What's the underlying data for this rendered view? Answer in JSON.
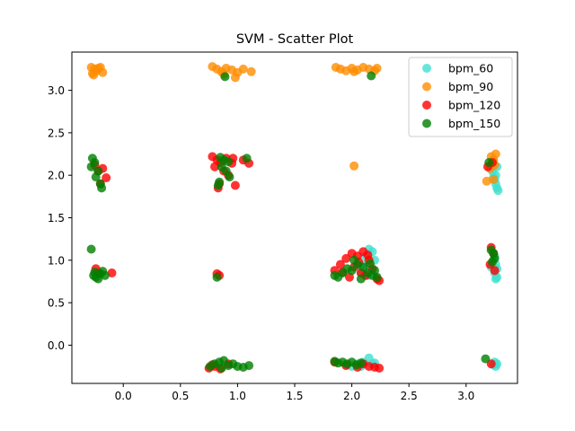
{
  "chart_data": {
    "type": "scatter",
    "title": "SVM - Scatter Plot",
    "xlabel": "",
    "ylabel": "",
    "xlim": [
      -0.45,
      3.45
    ],
    "ylim": [
      -0.45,
      3.45
    ],
    "x_ticks": [
      "0.0",
      "0.5",
      "1.0",
      "1.5",
      "2.0",
      "2.5",
      "3.0"
    ],
    "x_tick_values": [
      0.0,
      0.5,
      1.0,
      1.5,
      2.0,
      2.5,
      3.0
    ],
    "y_ticks": [
      "0.0",
      "0.5",
      "1.0",
      "1.5",
      "2.0",
      "2.5",
      "3.0"
    ],
    "y_tick_values": [
      0.0,
      0.5,
      1.0,
      1.5,
      2.0,
      2.5,
      3.0
    ],
    "grid": false,
    "legend_position": "top-right",
    "series": [
      {
        "name": "bpm_60",
        "color": "#40e0d0",
        "points": [
          [
            2.15,
            1.13
          ],
          [
            2.18,
            1.1
          ],
          [
            2.12,
            1.05
          ],
          [
            2.2,
            1.0
          ],
          [
            2.1,
            0.95
          ],
          [
            2.16,
            0.9
          ],
          [
            2.08,
            0.86
          ],
          [
            2.14,
            0.82
          ],
          [
            3.24,
            2.18
          ],
          [
            3.27,
            2.1
          ],
          [
            3.23,
            2.05
          ],
          [
            3.26,
            2.0
          ],
          [
            3.25,
            1.95
          ],
          [
            3.26,
            1.9
          ],
          [
            3.27,
            1.85
          ],
          [
            3.28,
            1.82
          ],
          [
            3.22,
            2.12
          ],
          [
            3.24,
            1.98
          ],
          [
            3.25,
            1.05
          ],
          [
            3.24,
            1.0
          ],
          [
            3.26,
            0.95
          ],
          [
            3.27,
            0.9
          ],
          [
            3.25,
            0.85
          ],
          [
            3.27,
            0.8
          ],
          [
            3.26,
            0.78
          ],
          [
            3.22,
            0.92
          ],
          [
            3.25,
            -0.2
          ],
          [
            3.27,
            -0.22
          ],
          [
            3.26,
            -0.25
          ],
          [
            3.24,
            -0.23
          ],
          [
            2.05,
            -0.22
          ],
          [
            2.1,
            -0.2
          ],
          [
            2.15,
            -0.15
          ],
          [
            2.0,
            -0.25
          ],
          [
            2.18,
            -0.22
          ],
          [
            1.95,
            -0.23
          ],
          [
            2.08,
            -0.25
          ],
          [
            2.2,
            -0.21
          ]
        ]
      },
      {
        "name": "bpm_90",
        "color": "#ff8c00",
        "points": [
          [
            -0.28,
            3.27
          ],
          [
            -0.25,
            3.25
          ],
          [
            -0.23,
            3.23
          ],
          [
            -0.2,
            3.27
          ],
          [
            -0.27,
            3.2
          ],
          [
            -0.26,
            3.18
          ],
          [
            -0.18,
            3.21
          ],
          [
            -0.22,
            3.26
          ],
          [
            0.78,
            3.28
          ],
          [
            0.82,
            3.25
          ],
          [
            0.86,
            3.22
          ],
          [
            0.9,
            3.26
          ],
          [
            0.95,
            3.24
          ],
          [
            1.0,
            3.21
          ],
          [
            1.05,
            3.25
          ],
          [
            1.12,
            3.22
          ],
          [
            0.98,
            3.15
          ],
          [
            0.88,
            3.19
          ],
          [
            1.86,
            3.27
          ],
          [
            1.9,
            3.25
          ],
          [
            1.95,
            3.23
          ],
          [
            2.0,
            3.26
          ],
          [
            2.05,
            3.24
          ],
          [
            2.1,
            3.27
          ],
          [
            2.15,
            3.25
          ],
          [
            2.2,
            3.23
          ],
          [
            2.22,
            3.26
          ],
          [
            2.02,
            3.22
          ],
          [
            2.02,
            2.11
          ],
          [
            3.22,
            2.22
          ],
          [
            3.24,
            2.18
          ],
          [
            3.26,
            2.25
          ],
          [
            3.25,
            2.12
          ],
          [
            3.18,
            1.93
          ],
          [
            3.24,
            1.95
          ],
          [
            3.21,
            2.08
          ]
        ]
      },
      {
        "name": "bpm_120",
        "color": "#ff0000",
        "points": [
          [
            -0.22,
            2.05
          ],
          [
            -0.18,
            2.08
          ],
          [
            -0.15,
            1.97
          ],
          [
            -0.2,
            1.9
          ],
          [
            -0.25,
            2.12
          ],
          [
            -0.24,
            0.9
          ],
          [
            -0.22,
            0.85
          ],
          [
            -0.1,
            0.85
          ],
          [
            0.78,
            2.22
          ],
          [
            0.82,
            2.18
          ],
          [
            0.85,
            2.15
          ],
          [
            0.9,
            2.2
          ],
          [
            0.95,
            2.14
          ],
          [
            0.8,
            2.1
          ],
          [
            0.88,
            2.05
          ],
          [
            0.92,
            2.0
          ],
          [
            0.84,
            1.9
          ],
          [
            0.83,
            1.85
          ],
          [
            0.98,
            1.88
          ],
          [
            1.05,
            2.18
          ],
          [
            1.1,
            2.14
          ],
          [
            0.96,
            2.2
          ],
          [
            0.84,
            0.82
          ],
          [
            0.82,
            0.84
          ],
          [
            1.85,
            0.88
          ],
          [
            1.9,
            0.95
          ],
          [
            1.95,
            1.02
          ],
          [
            2.0,
            1.08
          ],
          [
            2.05,
            1.05
          ],
          [
            2.1,
            1.1
          ],
          [
            2.15,
            1.0
          ],
          [
            2.02,
            0.92
          ],
          [
            2.08,
            0.85
          ],
          [
            2.18,
            0.9
          ],
          [
            2.12,
            0.82
          ],
          [
            2.22,
            0.78
          ],
          [
            1.98,
            0.8
          ],
          [
            2.06,
            0.98
          ],
          [
            2.14,
            1.06
          ],
          [
            2.24,
            0.76
          ],
          [
            1.92,
            0.86
          ],
          [
            3.22,
            1.15
          ],
          [
            3.24,
            1.08
          ],
          [
            3.21,
            0.95
          ],
          [
            3.25,
            0.88
          ],
          [
            3.23,
            2.15
          ],
          [
            3.19,
            2.1
          ],
          [
            3.22,
            -0.22
          ],
          [
            0.75,
            -0.27
          ],
          [
            0.8,
            -0.25
          ],
          [
            0.85,
            -0.28
          ],
          [
            0.92,
            -0.22
          ],
          [
            0.78,
            -0.23
          ],
          [
            1.85,
            -0.2
          ],
          [
            1.95,
            -0.24
          ],
          [
            2.05,
            -0.26
          ],
          [
            2.1,
            -0.22
          ],
          [
            2.15,
            -0.25
          ],
          [
            2.2,
            -0.26
          ],
          [
            2.24,
            -0.27
          ]
        ]
      },
      {
        "name": "bpm_150",
        "color": "#008000",
        "points": [
          [
            -0.27,
            2.2
          ],
          [
            -0.25,
            2.15
          ],
          [
            -0.28,
            2.1
          ],
          [
            -0.22,
            2.05
          ],
          [
            -0.24,
            1.98
          ],
          [
            -0.2,
            1.9
          ],
          [
            -0.19,
            1.85
          ],
          [
            -0.28,
            1.13
          ],
          [
            -0.26,
            0.82
          ],
          [
            -0.24,
            0.8
          ],
          [
            -0.2,
            0.84
          ],
          [
            -0.18,
            0.87
          ],
          [
            -0.22,
            0.78
          ],
          [
            -0.16,
            0.82
          ],
          [
            -0.25,
            0.86
          ],
          [
            0.85,
            2.21
          ],
          [
            0.88,
            2.18
          ],
          [
            0.92,
            2.16
          ],
          [
            0.86,
            2.1
          ],
          [
            0.9,
            2.05
          ],
          [
            0.93,
            1.98
          ],
          [
            0.84,
            1.92
          ],
          [
            0.83,
            1.88
          ],
          [
            1.08,
            2.2
          ],
          [
            0.89,
            3.16
          ],
          [
            0.82,
            0.8
          ],
          [
            1.85,
            0.82
          ],
          [
            1.88,
            0.8
          ],
          [
            1.92,
            0.85
          ],
          [
            1.96,
            0.9
          ],
          [
            2.0,
            0.88
          ],
          [
            2.05,
            0.95
          ],
          [
            2.1,
            0.92
          ],
          [
            2.14,
            0.85
          ],
          [
            2.18,
            0.82
          ],
          [
            2.2,
            0.88
          ],
          [
            2.22,
            0.8
          ],
          [
            2.08,
            0.78
          ],
          [
            2.02,
            1.0
          ],
          [
            2.16,
            0.96
          ],
          [
            2.17,
            3.17
          ],
          [
            3.2,
            2.15
          ],
          [
            3.22,
            1.12
          ],
          [
            3.24,
            1.08
          ],
          [
            3.25,
            1.02
          ],
          [
            3.23,
            0.98
          ],
          [
            3.17,
            -0.16
          ],
          [
            0.76,
            -0.25
          ],
          [
            0.8,
            -0.22
          ],
          [
            0.84,
            -0.2
          ],
          [
            0.88,
            -0.18
          ],
          [
            0.92,
            -0.24
          ],
          [
            0.96,
            -0.22
          ],
          [
            1.0,
            -0.25
          ],
          [
            1.05,
            -0.26
          ],
          [
            1.1,
            -0.24
          ],
          [
            0.86,
            -0.27
          ],
          [
            1.85,
            -0.19
          ],
          [
            1.88,
            -0.21
          ],
          [
            1.92,
            -0.2
          ],
          [
            1.96,
            -0.22
          ],
          [
            2.0,
            -0.2
          ],
          [
            2.04,
            -0.23
          ],
          [
            2.08,
            -0.21
          ]
        ]
      }
    ]
  }
}
